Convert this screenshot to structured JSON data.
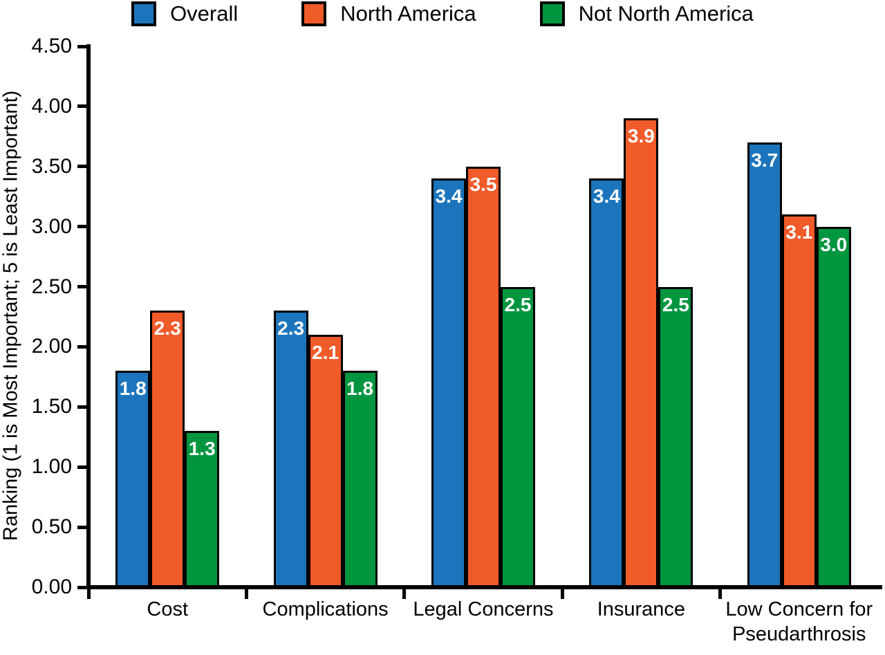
{
  "chart_data": {
    "type": "bar",
    "title": "",
    "xlabel": "",
    "ylabel": "Ranking (1 is Most Important; 5 is Least Important)",
    "ylim": [
      0,
      4.5
    ],
    "ytick_step": 0.5,
    "grid": false,
    "legend_position": "top",
    "bar_value_labels": true,
    "categories": [
      "Cost",
      "Complications",
      "Legal Concerns",
      "Insurance",
      "Low Concern for\nPseudarthrosis"
    ],
    "series": [
      {
        "name": "Overall",
        "color": "#1c75bc",
        "values": [
          1.8,
          2.3,
          3.4,
          3.4,
          3.7
        ]
      },
      {
        "name": "North America",
        "color": "#f15a29",
        "values": [
          2.3,
          2.1,
          3.5,
          3.9,
          3.1
        ]
      },
      {
        "name": "Not North America",
        "color": "#00953f",
        "values": [
          1.3,
          1.8,
          2.5,
          2.5,
          3.0
        ]
      }
    ]
  }
}
